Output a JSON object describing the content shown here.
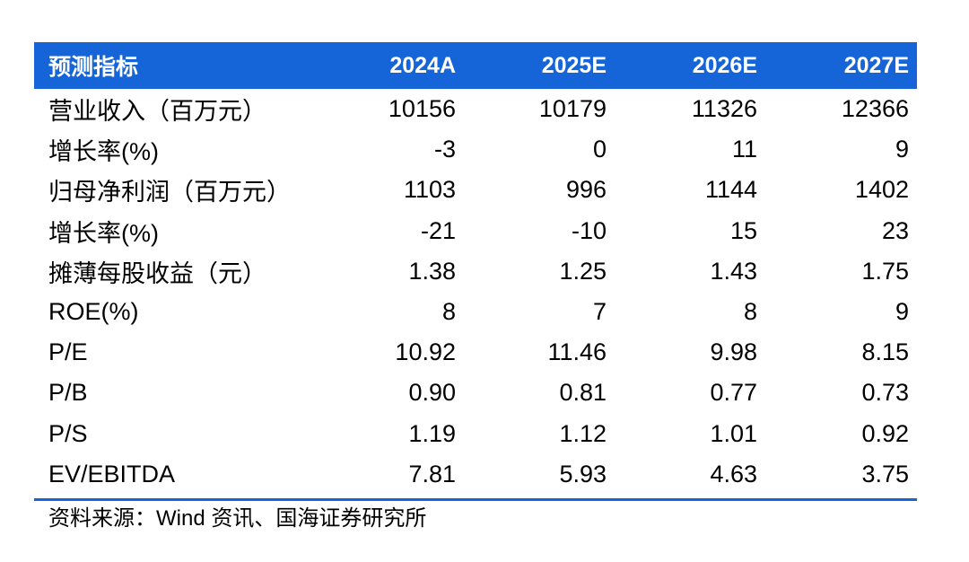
{
  "table": {
    "header": {
      "label": "预测指标",
      "years": [
        "2024A",
        "2025E",
        "2026E",
        "2027E"
      ]
    },
    "rows": [
      {
        "label": "营业收入（百万元）",
        "values": [
          "10156",
          "10179",
          "11326",
          "12366"
        ]
      },
      {
        "label": "增长率(%)",
        "values": [
          "-3",
          "0",
          "11",
          "9"
        ]
      },
      {
        "label": "归母净利润（百万元）",
        "values": [
          "1103",
          "996",
          "1144",
          "1402"
        ]
      },
      {
        "label": "增长率(%)",
        "values": [
          "-21",
          "-10",
          "15",
          "23"
        ]
      },
      {
        "label": "摊薄每股收益（元）",
        "values": [
          "1.38",
          "1.25",
          "1.43",
          "1.75"
        ]
      },
      {
        "label": "ROE(%)",
        "values": [
          "8",
          "7",
          "8",
          "9"
        ]
      },
      {
        "label": "P/E",
        "values": [
          "10.92",
          "11.46",
          "9.98",
          "8.15"
        ]
      },
      {
        "label": "P/B",
        "values": [
          "0.90",
          "0.81",
          "0.77",
          "0.73"
        ]
      },
      {
        "label": "P/S",
        "values": [
          "1.19",
          "1.12",
          "1.01",
          "0.92"
        ]
      },
      {
        "label": "EV/EBITDA",
        "values": [
          "7.81",
          "5.93",
          "4.63",
          "3.75"
        ]
      }
    ]
  },
  "source": "资料来源：Wind 资讯、国海证券研究所",
  "colors": {
    "header_bg": "#1565d8",
    "header_text": "#ffffff",
    "rule": "#1565d8"
  }
}
